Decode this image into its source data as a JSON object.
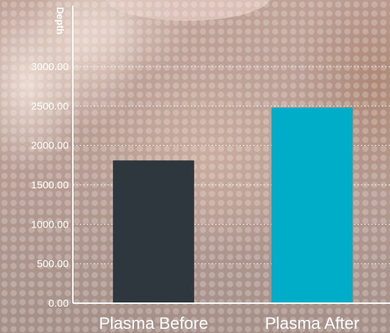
{
  "chart_data": {
    "type": "bar",
    "ylabel": "Depth",
    "xlabel": "",
    "title": "",
    "categories": [
      "Plasma Before",
      "Plasma After"
    ],
    "values": [
      1810,
      2480
    ],
    "colors": [
      "#2e363e",
      "#00adc9"
    ],
    "ylim": [
      0,
      3000
    ],
    "yticks": [
      "0.00",
      "500.00",
      "1000.00",
      "1500.00",
      "2000.00",
      "2500.00",
      "3000.00"
    ],
    "ytick_values": [
      0,
      500,
      1000,
      1500,
      2000,
      2500,
      3000
    ],
    "grid": true
  }
}
